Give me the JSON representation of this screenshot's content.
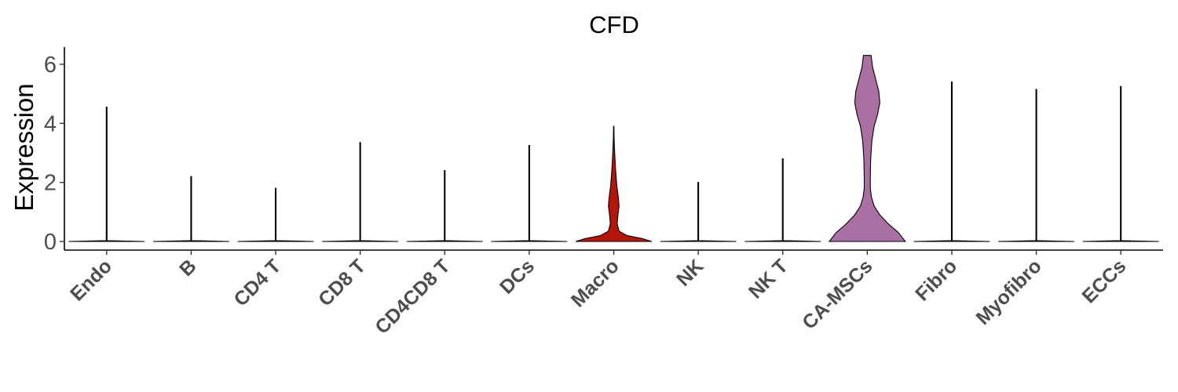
{
  "chart_data": {
    "type": "violin",
    "title": "CFD",
    "ylabel": "Expression",
    "xlabel": "",
    "ylim": [
      -0.3,
      6.6
    ],
    "yticks": [
      0,
      2,
      4,
      6
    ],
    "grid": false,
    "legend": "none",
    "colors": {
      "violin_default": "#ffffff",
      "Macro": "#b5160c",
      "CA-MSCs": "#ab70a3",
      "text": "#4d4d4d"
    },
    "categories": [
      "Endo",
      "B",
      "CD4 T",
      "CD8 T",
      "CD4CD8 T",
      "DCs",
      "Macro",
      "NK",
      "NK T",
      "CA-MSCs",
      "Fibro",
      "Myofibro",
      "ECCs"
    ],
    "series": [
      {
        "category": "Endo",
        "max": 4.55,
        "fill": "#ffffff",
        "density": [
          [
            0,
            1.0
          ],
          [
            0.03,
            0.01
          ],
          [
            4.55,
            0.01
          ]
        ]
      },
      {
        "category": "B",
        "max": 2.2,
        "fill": "#ffffff",
        "density": [
          [
            0,
            1.0
          ],
          [
            0.03,
            0.01
          ],
          [
            2.2,
            0.01
          ]
        ]
      },
      {
        "category": "CD4 T",
        "max": 1.8,
        "fill": "#ffffff",
        "density": [
          [
            0,
            1.0
          ],
          [
            0.03,
            0.01
          ],
          [
            1.8,
            0.01
          ]
        ]
      },
      {
        "category": "CD8 T",
        "max": 3.35,
        "fill": "#ffffff",
        "density": [
          [
            0,
            1.0
          ],
          [
            0.03,
            0.01
          ],
          [
            3.35,
            0.01
          ]
        ]
      },
      {
        "category": "CD4CD8 T",
        "max": 2.4,
        "fill": "#ffffff",
        "density": [
          [
            0,
            1.0
          ],
          [
            0.03,
            0.01
          ],
          [
            2.4,
            0.01
          ]
        ]
      },
      {
        "category": "DCs",
        "max": 3.25,
        "fill": "#ffffff",
        "density": [
          [
            0,
            1.0
          ],
          [
            0.03,
            0.01
          ],
          [
            3.25,
            0.01
          ]
        ]
      },
      {
        "category": "Macro",
        "max": 3.9,
        "fill": "#b5160c",
        "density": [
          [
            0,
            1.0
          ],
          [
            0.1,
            0.75
          ],
          [
            0.2,
            0.35
          ],
          [
            0.35,
            0.14
          ],
          [
            0.6,
            0.09
          ],
          [
            0.9,
            0.11
          ],
          [
            1.2,
            0.14
          ],
          [
            1.5,
            0.12
          ],
          [
            1.9,
            0.08
          ],
          [
            2.4,
            0.05
          ],
          [
            3.0,
            0.025
          ],
          [
            3.5,
            0.01
          ],
          [
            3.9,
            0.005
          ]
        ]
      },
      {
        "category": "NK",
        "max": 2.0,
        "fill": "#ffffff",
        "density": [
          [
            0,
            1.0
          ],
          [
            0.03,
            0.01
          ],
          [
            2.0,
            0.01
          ]
        ]
      },
      {
        "category": "NK T",
        "max": 2.8,
        "fill": "#ffffff",
        "density": [
          [
            0,
            1.0
          ],
          [
            0.03,
            0.01
          ],
          [
            2.8,
            0.01
          ]
        ]
      },
      {
        "category": "CA-MSCs",
        "max": 6.3,
        "fill": "#ab70a3",
        "density": [
          [
            0,
            1.0
          ],
          [
            0.3,
            0.82
          ],
          [
            0.6,
            0.55
          ],
          [
            0.9,
            0.33
          ],
          [
            1.2,
            0.18
          ],
          [
            1.5,
            0.11
          ],
          [
            1.8,
            0.08
          ],
          [
            2.2,
            0.08
          ],
          [
            2.8,
            0.09
          ],
          [
            3.4,
            0.12
          ],
          [
            3.9,
            0.18
          ],
          [
            4.3,
            0.27
          ],
          [
            4.7,
            0.33
          ],
          [
            5.1,
            0.3
          ],
          [
            5.5,
            0.22
          ],
          [
            5.9,
            0.14
          ],
          [
            6.3,
            0.1
          ]
        ]
      },
      {
        "category": "Fibro",
        "max": 5.4,
        "fill": "#ffffff",
        "density": [
          [
            0,
            1.0
          ],
          [
            0.03,
            0.01
          ],
          [
            5.4,
            0.01
          ]
        ]
      },
      {
        "category": "Myofibro",
        "max": 5.15,
        "fill": "#ffffff",
        "density": [
          [
            0,
            1.0
          ],
          [
            0.03,
            0.01
          ],
          [
            5.15,
            0.01
          ]
        ]
      },
      {
        "category": "ECCs",
        "max": 5.25,
        "fill": "#ffffff",
        "density": [
          [
            0,
            1.0
          ],
          [
            0.03,
            0.01
          ],
          [
            5.25,
            0.01
          ]
        ]
      }
    ]
  }
}
